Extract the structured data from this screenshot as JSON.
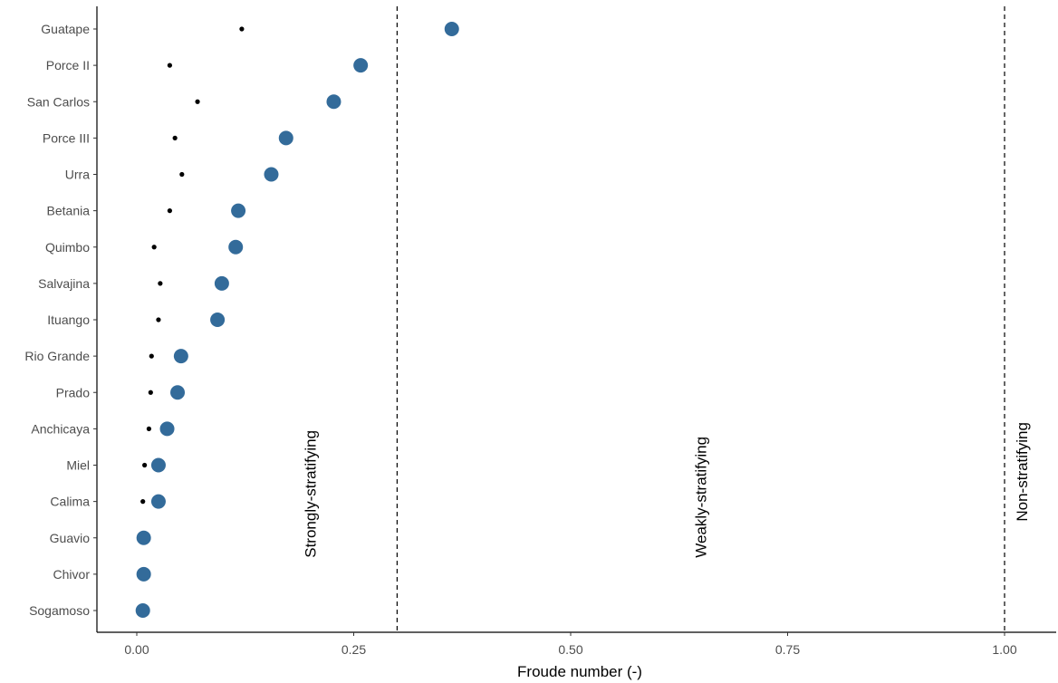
{
  "chart_data": {
    "type": "scatter",
    "title": "",
    "xlabel": "Froude number (-)",
    "ylabel": "",
    "xlim": [
      -0.05,
      1.06
    ],
    "x_ticks": [
      0.0,
      0.25,
      0.5,
      0.75,
      1.0
    ],
    "x_tick_labels": [
      "0.00",
      "0.25",
      "0.50",
      "0.75",
      "1.00"
    ],
    "grid": false,
    "legend": "none",
    "categories": [
      "Guatape",
      "Porce II",
      "San Carlos",
      "Porce III",
      "Urra",
      "Betania",
      "Quimbo",
      "Salvajina",
      "Ituango",
      "Rio Grande",
      "Prado",
      "Anchicaya",
      "Miel",
      "Calima",
      "Guavio",
      "Chivor",
      "Sogamoso"
    ],
    "series": [
      {
        "marker": "small-black-dot",
        "color": "#000000",
        "values": [
          0.121,
          0.038,
          0.07,
          0.044,
          0.052,
          0.038,
          0.02,
          0.027,
          0.025,
          0.017,
          0.016,
          0.014,
          0.009,
          0.007,
          null,
          null,
          null
        ]
      },
      {
        "marker": "large-blue-dot",
        "color": "#336b9a",
        "values": [
          0.363,
          0.258,
          0.227,
          0.172,
          0.155,
          0.117,
          0.114,
          0.098,
          0.093,
          0.051,
          0.047,
          0.035,
          0.025,
          0.025,
          0.008,
          0.008,
          0.007
        ]
      }
    ],
    "reference_lines": [
      {
        "x": 0.3,
        "style": "dashed"
      },
      {
        "x": 1.0,
        "style": "dashed"
      }
    ],
    "annotations": [
      {
        "text": "Strongly-stratifying",
        "x": 0.2,
        "y_category": "Guavio",
        "rotation": -90
      },
      {
        "text": "Weakly-stratifying",
        "x": 0.65,
        "y_category": "Guavio",
        "rotation": -90
      },
      {
        "text": "Non-stratifying",
        "x": 1.02,
        "y_category": "Calima",
        "rotation": -90
      }
    ]
  }
}
